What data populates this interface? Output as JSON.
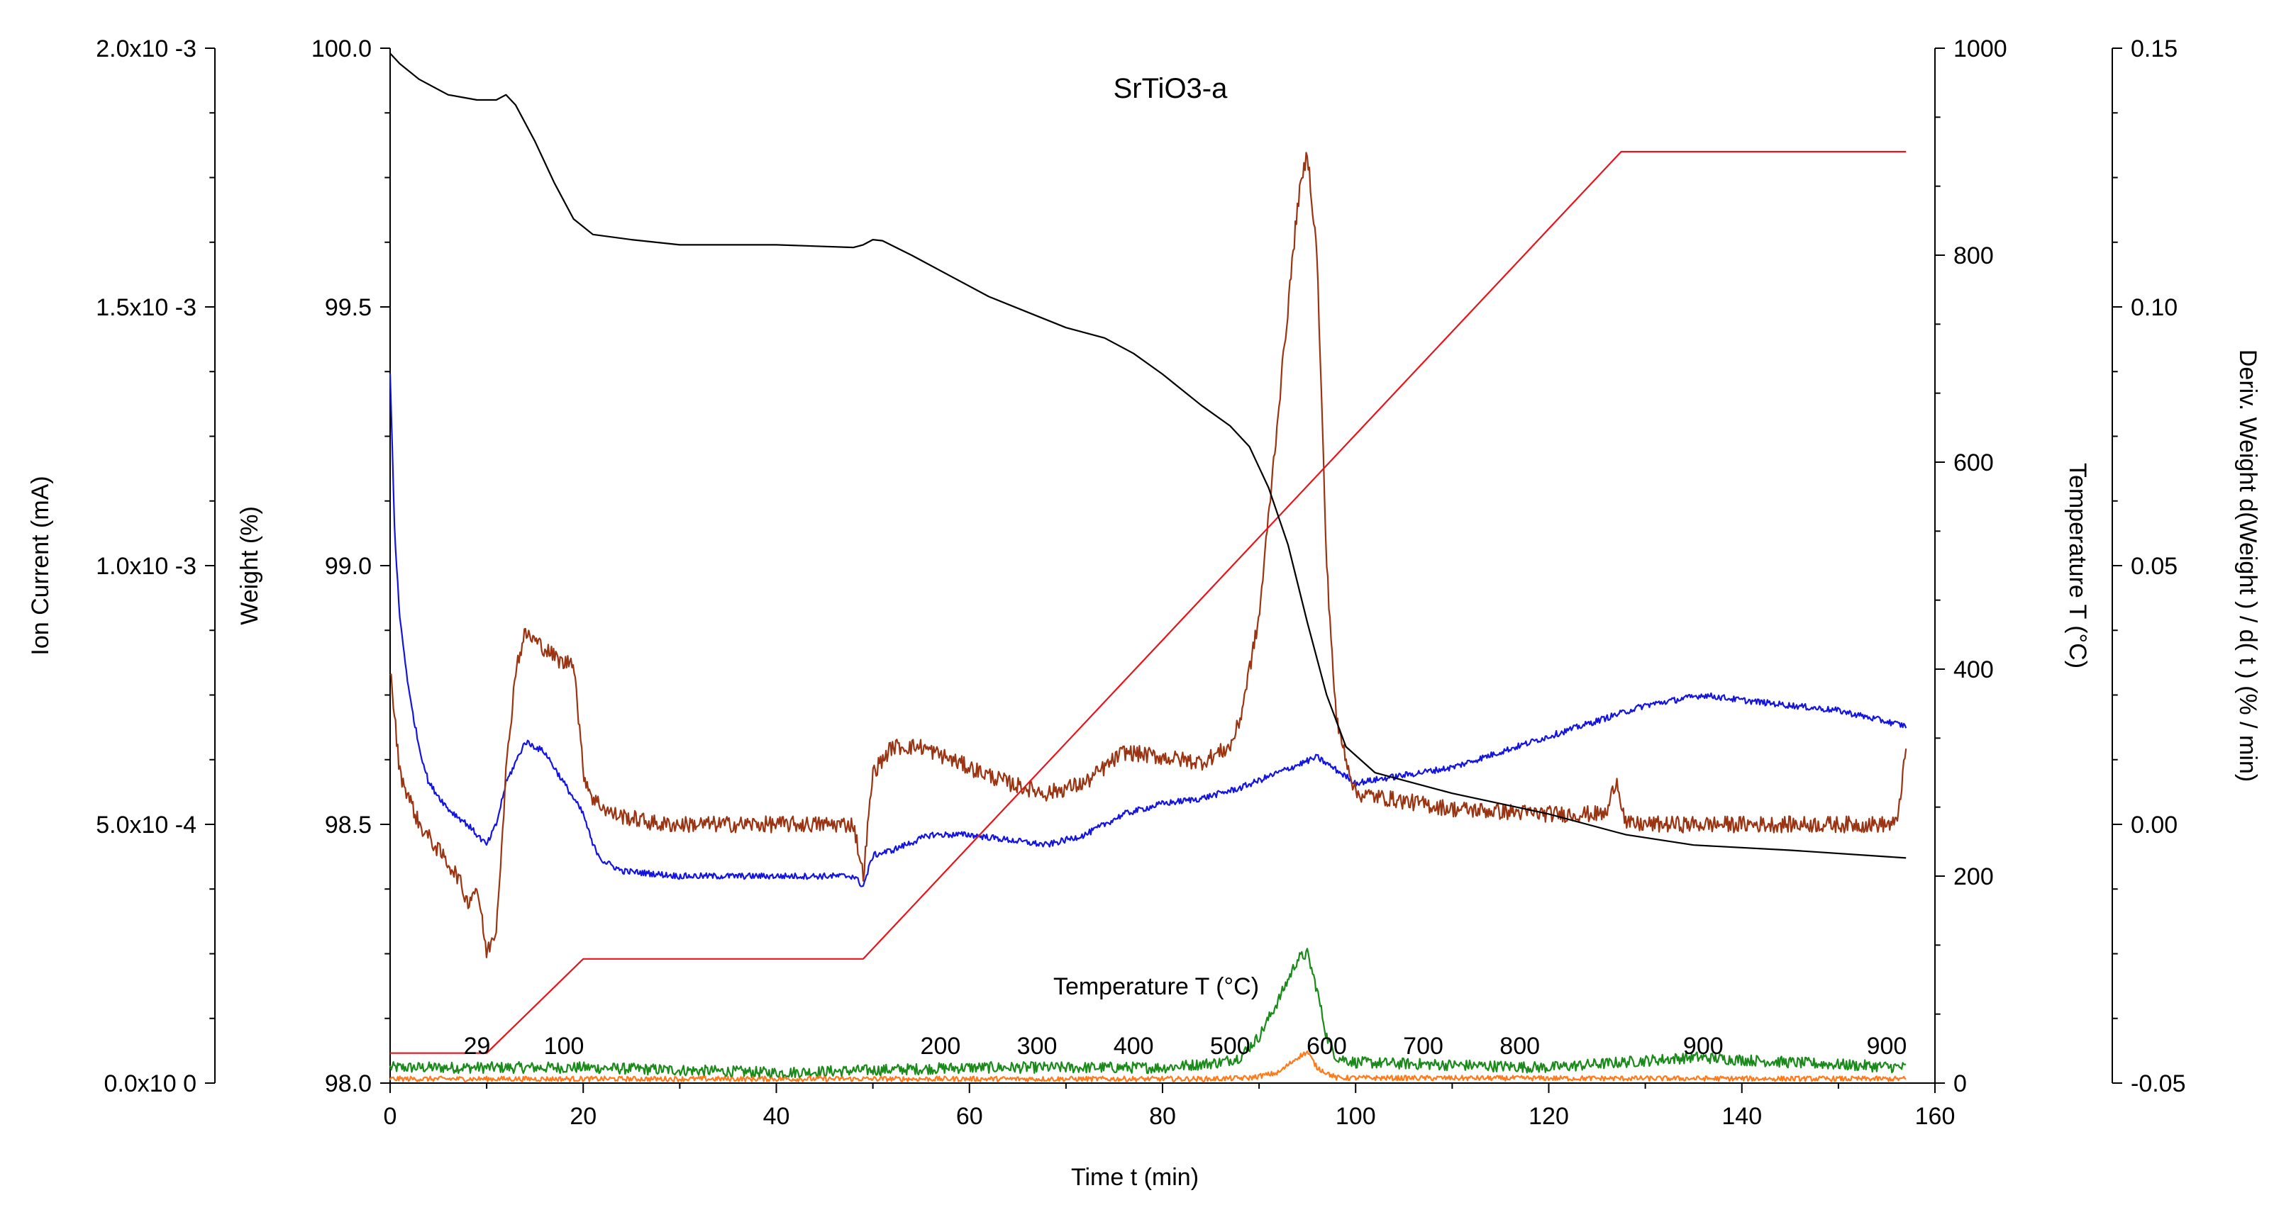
{
  "chart_data": {
    "type": "line",
    "title": "SrTiO3-a",
    "x_axis": {
      "label": "Time  t  (min)",
      "range": [
        0,
        160
      ],
      "ticks": [
        0,
        20,
        40,
        60,
        80,
        100,
        120,
        140,
        160
      ],
      "tick_labels": [
        "0",
        "20",
        "40",
        "60",
        "80",
        "100",
        "120",
        "140",
        "160"
      ]
    },
    "y_axes": {
      "ion_current": {
        "label": "Ion Current  (mA)",
        "range": [
          0,
          0.002
        ],
        "ticks": [
          0,
          0.0005,
          0.001,
          0.0015,
          0.002
        ],
        "tick_labels": [
          "0.0x10 0",
          "5.0x10 -4",
          "1.0x10 -3",
          "1.5x10 -3",
          "2.0x10 -3"
        ]
      },
      "weight": {
        "label": "Weight  (%)",
        "range": [
          98.0,
          100.0
        ],
        "ticks": [
          98.0,
          98.5,
          99.0,
          99.5,
          100.0
        ],
        "tick_labels": [
          "98.0",
          "98.5",
          "99.0",
          "99.5",
          "100.0"
        ]
      },
      "temperature": {
        "label": "Temperature  T  (°C)",
        "color": "#e8141b",
        "range": [
          0,
          1000
        ],
        "ticks": [
          0,
          200,
          400,
          600,
          800,
          1000
        ],
        "tick_labels": [
          "0",
          "200",
          "400",
          "600",
          "800",
          "1000"
        ]
      },
      "deriv_weight": {
        "label": "Deriv. Weight d(Weight ) / d( t )  (% / min)",
        "color": "#9a3412",
        "range": [
          -0.05,
          0.15
        ],
        "ticks": [
          -0.05,
          0.0,
          0.05,
          0.1,
          0.15
        ],
        "tick_labels": [
          "-0.05",
          "0.00",
          "0.05",
          "0.10",
          "0.15"
        ]
      }
    },
    "temperature_annotation": {
      "label": "Temperature  T  (°C)",
      "marks": [
        {
          "t": 9,
          "label": "29"
        },
        {
          "t": 18,
          "label": "100"
        },
        {
          "t": 57,
          "label": "200"
        },
        {
          "t": 67,
          "label": "300"
        },
        {
          "t": 77,
          "label": "400"
        },
        {
          "t": 87,
          "label": "500"
        },
        {
          "t": 97,
          "label": "600"
        },
        {
          "t": 107,
          "label": "700"
        },
        {
          "t": 117,
          "label": "800"
        },
        {
          "t": 136,
          "label": "900"
        },
        {
          "t": 155,
          "label": "900"
        }
      ]
    },
    "series": [
      {
        "name": "Weight",
        "axis": "weight",
        "color": "#000000",
        "noise": 0,
        "points": [
          [
            0,
            99.99
          ],
          [
            1,
            99.97
          ],
          [
            3,
            99.94
          ],
          [
            6,
            99.91
          ],
          [
            9,
            99.9
          ],
          [
            11,
            99.9
          ],
          [
            12,
            99.91
          ],
          [
            13,
            99.89
          ],
          [
            15,
            99.82
          ],
          [
            17,
            99.74
          ],
          [
            19,
            99.67
          ],
          [
            21,
            99.64
          ],
          [
            25,
            99.63
          ],
          [
            30,
            99.62
          ],
          [
            40,
            99.62
          ],
          [
            48,
            99.615
          ],
          [
            49,
            99.62
          ],
          [
            50,
            99.63
          ],
          [
            51,
            99.628
          ],
          [
            54,
            99.6
          ],
          [
            58,
            99.56
          ],
          [
            62,
            99.52
          ],
          [
            66,
            99.49
          ],
          [
            70,
            99.46
          ],
          [
            74,
            99.44
          ],
          [
            77,
            99.41
          ],
          [
            80,
            99.37
          ],
          [
            84,
            99.31
          ],
          [
            87,
            99.27
          ],
          [
            89,
            99.23
          ],
          [
            91,
            99.15
          ],
          [
            93,
            99.04
          ],
          [
            95,
            98.89
          ],
          [
            97,
            98.75
          ],
          [
            99,
            98.65
          ],
          [
            102,
            98.6
          ],
          [
            110,
            98.56
          ],
          [
            120,
            98.52
          ],
          [
            127,
            98.485
          ],
          [
            128,
            98.48
          ],
          [
            135,
            98.46
          ],
          [
            145,
            98.45
          ],
          [
            157,
            98.435
          ]
        ]
      },
      {
        "name": "Temperature",
        "axis": "temperature",
        "color": "#e8141b",
        "noise": 0,
        "points": [
          [
            0,
            29
          ],
          [
            10,
            29
          ],
          [
            20,
            120
          ],
          [
            49,
            120
          ],
          [
            127.5,
            900
          ],
          [
            157,
            900
          ]
        ]
      },
      {
        "name": "Deriv. Weight",
        "axis": "deriv_weight",
        "color": "#9a3412",
        "noise": 0.0016,
        "points": [
          [
            0,
            0.03
          ],
          [
            1,
            0.01
          ],
          [
            3,
            0.0
          ],
          [
            5,
            -0.005
          ],
          [
            7,
            -0.01
          ],
          [
            8,
            -0.015
          ],
          [
            9,
            -0.012
          ],
          [
            10,
            -0.025
          ],
          [
            11,
            -0.02
          ],
          [
            12,
            0.01
          ],
          [
            13,
            0.03
          ],
          [
            14,
            0.037
          ],
          [
            16,
            0.034
          ],
          [
            18,
            0.031
          ],
          [
            19,
            0.032
          ],
          [
            20,
            0.01
          ],
          [
            21,
            0.005
          ],
          [
            23,
            0.002
          ],
          [
            28,
            0.0
          ],
          [
            40,
            0.0
          ],
          [
            48,
            0.0
          ],
          [
            49,
            -0.01
          ],
          [
            50,
            0.01
          ],
          [
            52,
            0.015
          ],
          [
            55,
            0.015
          ],
          [
            60,
            0.011
          ],
          [
            64,
            0.008
          ],
          [
            68,
            0.006
          ],
          [
            72,
            0.008
          ],
          [
            76,
            0.014
          ],
          [
            80,
            0.013
          ],
          [
            84,
            0.012
          ],
          [
            87,
            0.015
          ],
          [
            88,
            0.02
          ],
          [
            90,
            0.04
          ],
          [
            92,
            0.08
          ],
          [
            94,
            0.12
          ],
          [
            95,
            0.13
          ],
          [
            96,
            0.11
          ],
          [
            97,
            0.05
          ],
          [
            98,
            0.02
          ],
          [
            100,
            0.006
          ],
          [
            110,
            0.003
          ],
          [
            120,
            0.002
          ],
          [
            126,
            0.002
          ],
          [
            127,
            0.009
          ],
          [
            128,
            0.0
          ],
          [
            140,
            0.0
          ],
          [
            156,
            0.0
          ],
          [
            157,
            0.014
          ]
        ]
      },
      {
        "name": "Ion Current (blue)",
        "axis": "ion_current",
        "color": "#1414e0",
        "noise": 6e-06,
        "points": [
          [
            0,
            0.00137
          ],
          [
            0.5,
            0.00105
          ],
          [
            1,
            0.0009
          ],
          [
            2,
            0.00075
          ],
          [
            3,
            0.00065
          ],
          [
            4,
            0.00058
          ],
          [
            6,
            0.00053
          ],
          [
            8,
            0.0005
          ],
          [
            10,
            0.00046
          ],
          [
            11,
            0.0005
          ],
          [
            12,
            0.00058
          ],
          [
            14,
            0.00066
          ],
          [
            16,
            0.00064
          ],
          [
            18,
            0.00058
          ],
          [
            20,
            0.00052
          ],
          [
            21,
            0.00046
          ],
          [
            22,
            0.00043
          ],
          [
            24,
            0.00041
          ],
          [
            30,
            0.0004
          ],
          [
            40,
            0.0004
          ],
          [
            48,
            0.0004
          ],
          [
            49,
            0.00038
          ],
          [
            50,
            0.00044
          ],
          [
            52,
            0.00045
          ],
          [
            56,
            0.00048
          ],
          [
            60,
            0.00048
          ],
          [
            64,
            0.00047
          ],
          [
            68,
            0.00046
          ],
          [
            72,
            0.00048
          ],
          [
            76,
            0.00052
          ],
          [
            80,
            0.00054
          ],
          [
            84,
            0.00055
          ],
          [
            88,
            0.00057
          ],
          [
            92,
            0.0006
          ],
          [
            96,
            0.00063
          ],
          [
            100,
            0.00058
          ],
          [
            110,
            0.00061
          ],
          [
            120,
            0.00067
          ],
          [
            130,
            0.00073
          ],
          [
            136,
            0.00075
          ],
          [
            140,
            0.00074
          ],
          [
            150,
            0.00072
          ],
          [
            157,
            0.00069
          ]
        ]
      },
      {
        "name": "Ion Current (green)",
        "axis": "ion_current",
        "color": "#1a8a1a",
        "noise": 1.1e-05,
        "points": [
          [
            0,
            3e-05
          ],
          [
            20,
            3e-05
          ],
          [
            40,
            2e-05
          ],
          [
            60,
            3e-05
          ],
          [
            80,
            3e-05
          ],
          [
            86,
            4e-05
          ],
          [
            88,
            5e-05
          ],
          [
            90,
            9e-05
          ],
          [
            92,
            0.00016
          ],
          [
            93,
            0.0002
          ],
          [
            94,
            0.00024
          ],
          [
            95,
            0.00025
          ],
          [
            96,
            0.00018
          ],
          [
            97,
            9e-05
          ],
          [
            98,
            5e-05
          ],
          [
            100,
            4e-05
          ],
          [
            120,
            3e-05
          ],
          [
            135,
            5e-05
          ],
          [
            145,
            4e-05
          ],
          [
            157,
            3e-05
          ]
        ]
      },
      {
        "name": "Ion Current (orange)",
        "axis": "ion_current",
        "color": "#ff7a1a",
        "noise": 5e-06,
        "points": [
          [
            0,
            8e-06
          ],
          [
            85,
            8e-06
          ],
          [
            89,
            1e-05
          ],
          [
            92,
            2e-05
          ],
          [
            94,
            5e-05
          ],
          [
            95,
            6e-05
          ],
          [
            96,
            3e-05
          ],
          [
            98,
            1e-05
          ],
          [
            157,
            8e-06
          ]
        ]
      }
    ]
  }
}
